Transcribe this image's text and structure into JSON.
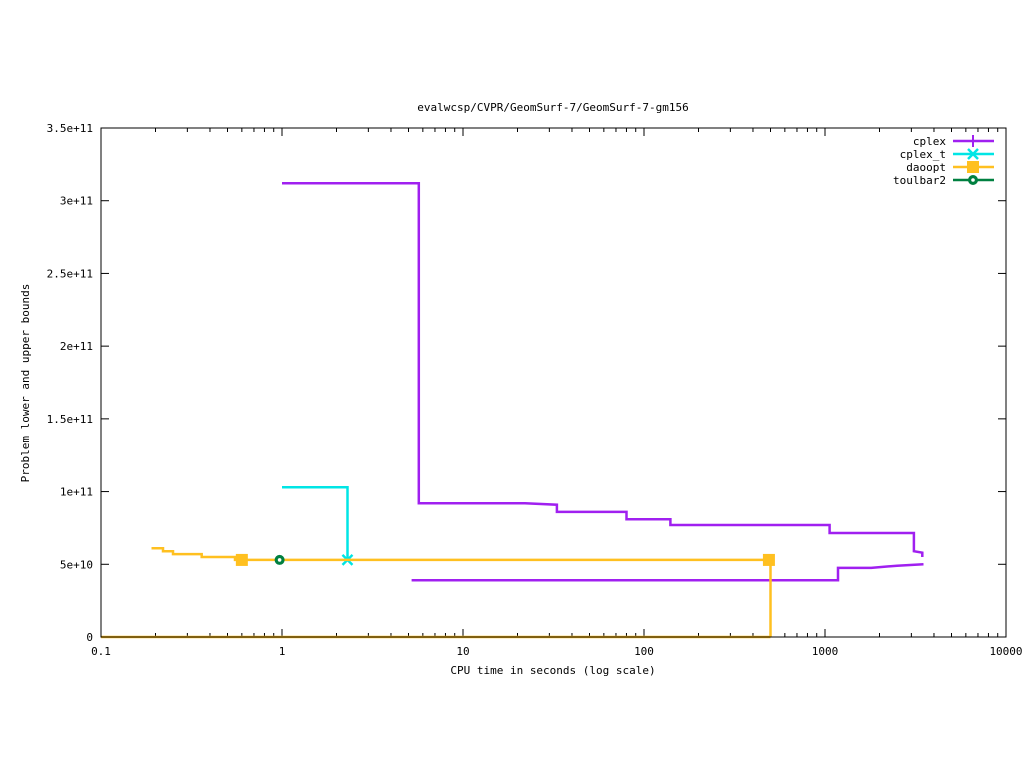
{
  "chart_data": {
    "type": "line",
    "title": "evalwcsp/CVPR/GeomSurf-7/GeomSurf-7-gm156",
    "xlabel": "CPU time in seconds (log scale)",
    "ylabel": "Problem lower and upper bounds",
    "x_scale": "log",
    "xlim": [
      0.1,
      10000
    ],
    "ylim": [
      0,
      350000000000
    ],
    "x_ticks": [
      0.1,
      1,
      10,
      100,
      1000,
      10000
    ],
    "x_tick_labels": [
      "0.1",
      "1",
      "10",
      "100",
      "1000",
      "10000"
    ],
    "y_ticks": [
      0,
      50000000000,
      100000000000,
      150000000000,
      200000000000,
      250000000000,
      300000000000,
      350000000000
    ],
    "y_tick_labels": [
      "0",
      "5e+10",
      "1e+11",
      "1.5e+11",
      "2e+11",
      "2.5e+11",
      "3e+11",
      "3.5e+11"
    ],
    "grid": false,
    "legend_position": "top-right",
    "series": [
      {
        "name": "cplex",
        "color": "#a020f0",
        "marker": "plus",
        "segments": [
          {
            "role": "upper",
            "x": [
              1.0,
              5.7,
              5.7,
              22,
              33,
              33,
              80,
              80,
              140,
              140,
              1060,
              1060,
              3100,
              3100,
              3450,
              3450
            ],
            "y": [
              312000000000,
              312000000000,
              92000000000,
              92000000000,
              91000000000,
              86000000000,
              86000000000,
              81000000000,
              81000000000,
              77000000000,
              77000000000,
              71500000000,
              71500000000,
              59000000000,
              58000000000,
              55000000000
            ]
          },
          {
            "role": "lower",
            "x": [
              5.2,
              1180,
              1180,
              1800,
              2500,
              3500
            ],
            "y": [
              39000000000,
              39000000000,
              47500000000,
              47500000000,
              49000000000,
              50000000000
            ]
          }
        ],
        "markers_x": [],
        "markers_y": []
      },
      {
        "name": "cplex_t",
        "color": "#00e5e5",
        "marker": "cross",
        "segments": [
          {
            "role": "upper",
            "x": [
              1.0,
              2.3,
              2.3
            ],
            "y": [
              103000000000,
              103000000000,
              53000000000
            ]
          }
        ],
        "markers_x": [
          2.3
        ],
        "markers_y": [
          53000000000
        ]
      },
      {
        "name": "daoopt",
        "color": "#ffc020",
        "marker": "square",
        "segments": [
          {
            "role": "upper",
            "x": [
              0.19,
              0.22,
              0.22,
              0.25,
              0.25,
              0.36,
              0.36,
              0.55,
              0.55,
              500,
              500
            ],
            "y": [
              61000000000,
              61000000000,
              59000000000,
              59000000000,
              57000000000,
              57000000000,
              55000000000,
              55000000000,
              53000000000,
              53000000000,
              0
            ]
          },
          {
            "role": "lower",
            "x": [
              0.1,
              500
            ],
            "y": [
              0,
              0
            ]
          }
        ],
        "markers_x": [
          0.6,
          490
        ],
        "markers_y": [
          53000000000,
          53000000000
        ]
      },
      {
        "name": "toulbar2",
        "color": "#008040",
        "marker": "circle",
        "segments": [],
        "markers_x": [
          0.97
        ],
        "markers_y": [
          53000000000
        ]
      }
    ]
  }
}
